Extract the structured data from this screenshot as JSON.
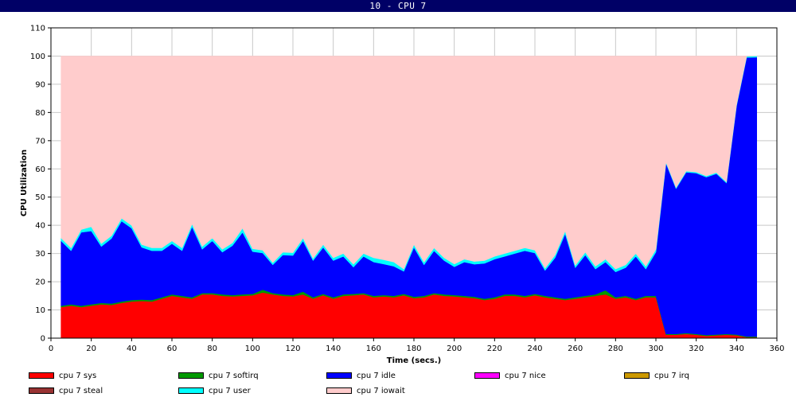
{
  "window": {
    "title": "10 - CPU 7"
  },
  "colors": {
    "iowait": "#ffcccc",
    "user": "#00ffff",
    "idle": "#0000ff",
    "softirq": "#009900",
    "sys": "#ff0000",
    "nice": "#ff00ff",
    "irq": "#cc9900",
    "steal": "#993333"
  },
  "chart_data": {
    "type": "area",
    "title": "",
    "xlabel": "Time (secs.)",
    "ylabel": "CPU Utilization",
    "xlim": [
      0,
      360
    ],
    "ylim": [
      0,
      110
    ],
    "xticks": [
      0,
      20,
      40,
      60,
      80,
      100,
      120,
      140,
      160,
      180,
      200,
      220,
      240,
      260,
      280,
      300,
      320,
      340,
      360
    ],
    "yticks": [
      0,
      10,
      20,
      30,
      40,
      50,
      60,
      70,
      80,
      90,
      100,
      110
    ],
    "grid": true,
    "stacked": true,
    "legend_position": "bottom",
    "x": [
      5,
      10,
      15,
      20,
      25,
      30,
      35,
      40,
      45,
      50,
      55,
      60,
      65,
      70,
      75,
      80,
      85,
      90,
      95,
      100,
      105,
      110,
      115,
      120,
      125,
      130,
      135,
      140,
      145,
      150,
      155,
      160,
      165,
      170,
      175,
      180,
      185,
      190,
      195,
      200,
      205,
      210,
      215,
      220,
      225,
      230,
      235,
      240,
      245,
      250,
      255,
      260,
      265,
      270,
      275,
      280,
      285,
      290,
      295,
      300,
      305,
      310,
      315,
      320,
      325,
      330,
      335,
      340,
      345,
      350
    ],
    "series": [
      {
        "name": "cpu 7 sys",
        "key": "sys",
        "values": [
          11,
          11.5,
          11,
          11.5,
          12,
          11.8,
          12.5,
          13,
          13.2,
          13,
          14,
          15,
          14.5,
          14,
          15.5,
          15.5,
          15,
          14.8,
          15,
          15.2,
          16.2,
          15.5,
          15,
          14.8,
          15.5,
          14,
          15.2,
          14,
          15,
          15.2,
          15.5,
          14.5,
          14.8,
          14.5,
          15.2,
          14.2,
          14.5,
          15.5,
          15,
          14.8,
          14.5,
          14.2,
          13.5,
          14,
          15,
          15,
          14.5,
          15.2,
          14.5,
          14,
          13.5,
          14,
          14.5,
          15,
          15.5,
          14,
          14.5,
          13.5,
          14.5,
          14.5,
          1.2,
          1.2,
          1.5,
          1.2,
          0.8,
          1,
          1.2,
          1,
          0.3,
          0.3
        ]
      },
      {
        "name": "cpu 7 softirq",
        "key": "softirq",
        "values": [
          0.5,
          0.5,
          0.5,
          0.5,
          0.5,
          0.5,
          0.5,
          0.5,
          0.5,
          0.5,
          0.5,
          0.5,
          0.5,
          0.5,
          0.5,
          0.5,
          0.5,
          0.5,
          0.5,
          0.5,
          1,
          0.5,
          0.5,
          0.5,
          1,
          0.5,
          0.5,
          0.5,
          0.5,
          0.5,
          0.5,
          0.5,
          0.5,
          0.5,
          0.5,
          0.5,
          0.5,
          0.5,
          0.5,
          0.5,
          0.5,
          0.5,
          0.5,
          0.5,
          0.5,
          0.5,
          0.5,
          0.5,
          0.5,
          0.5,
          0.5,
          0.5,
          0.5,
          0.5,
          1.5,
          0.5,
          0.5,
          0.5,
          0.5,
          0.5,
          0.3,
          0.3,
          0.3,
          0.3,
          0.3,
          0.3,
          0.3,
          0.3,
          0.3,
          0.3
        ]
      },
      {
        "name": "cpu 7 idle",
        "key": "idle",
        "values": [
          23,
          19,
          26,
          26,
          20,
          23,
          28.5,
          25.5,
          18.5,
          17.5,
          16.5,
          18,
          16,
          25,
          15.5,
          18.5,
          15,
          17.5,
          22,
          15,
          13,
          10,
          14,
          14,
          18,
          13,
          16.5,
          13,
          13.5,
          9.5,
          13,
          12,
          11,
          10.5,
          8,
          17.5,
          11,
          15,
          12,
          10,
          12,
          11.5,
          12.5,
          13.5,
          13.5,
          14.5,
          16,
          14.5,
          9,
          14,
          23,
          10.5,
          14.5,
          9,
          10,
          9,
          10,
          15,
          9.5,
          15.5,
          60.5,
          51.5,
          57,
          57,
          56,
          57,
          53.5,
          81,
          98.9,
          99
        ]
      },
      {
        "name": "cpu 7 nice",
        "key": "nice",
        "values": [
          0,
          0,
          0,
          0,
          0,
          0,
          0,
          0,
          0,
          0,
          0,
          0,
          0,
          0,
          0,
          0,
          0,
          0,
          0,
          0,
          0,
          0,
          0,
          0,
          0,
          0,
          0,
          0,
          0,
          0,
          0,
          0,
          0,
          0,
          0,
          0,
          0,
          0,
          0,
          0,
          0,
          0,
          0,
          0,
          0,
          0,
          0,
          0,
          0,
          0,
          0,
          0,
          0,
          0,
          0,
          0,
          0,
          0,
          0,
          0,
          0,
          0,
          0,
          0,
          0,
          0,
          0,
          0,
          0,
          0
        ]
      },
      {
        "name": "cpu 7 irq",
        "key": "irq",
        "values": [
          0,
          0,
          0,
          0,
          0,
          0,
          0,
          0,
          0,
          0,
          0,
          0,
          0,
          0,
          0,
          0,
          0,
          0,
          0,
          0,
          0,
          0,
          0,
          0,
          0,
          0,
          0,
          0,
          0,
          0,
          0,
          0,
          0,
          0,
          0,
          0,
          0,
          0,
          0,
          0,
          0,
          0,
          0,
          0,
          0,
          0,
          0,
          0,
          0,
          0,
          0,
          0,
          0,
          0,
          0,
          0,
          0,
          0,
          0,
          0,
          0,
          0,
          0,
          0,
          0,
          0,
          0,
          0,
          0,
          0
        ]
      },
      {
        "name": "cpu 7 steal",
        "key": "steal",
        "values": [
          0,
          0,
          0,
          0,
          0,
          0,
          0,
          0,
          0,
          0,
          0,
          0,
          0,
          0,
          0,
          0,
          0,
          0,
          0,
          0,
          0,
          0,
          0,
          0,
          0,
          0,
          0,
          0,
          0,
          0,
          0,
          0,
          0,
          0,
          0,
          0,
          0,
          0,
          0,
          0,
          0,
          0,
          0,
          0,
          0,
          0,
          0,
          0,
          0,
          0,
          0,
          0,
          0,
          0,
          0,
          0,
          0,
          0,
          0,
          0,
          0,
          0,
          0,
          0,
          0,
          0,
          0,
          0,
          0,
          0
        ]
      },
      {
        "name": "cpu 7 user",
        "key": "user",
        "values": [
          1,
          1,
          1,
          1.5,
          1,
          1,
          1,
          1,
          1,
          1,
          1,
          1,
          1,
          1,
          1,
          1,
          1,
          1,
          1.5,
          1,
          1,
          0.8,
          1,
          1,
          1,
          0.8,
          1,
          1,
          1,
          1,
          1,
          1.5,
          1.5,
          1.5,
          0.8,
          1,
          1,
          1,
          1,
          1,
          1,
          1,
          1,
          1,
          1,
          1,
          1,
          1,
          0.8,
          1,
          1,
          0.8,
          1,
          1,
          1,
          1,
          1,
          1,
          1,
          1,
          0.4,
          0.4,
          0.4,
          0.4,
          0.4,
          0.4,
          0.4,
          0.4,
          0.4,
          0.4
        ]
      },
      {
        "name": "cpu 7 iowait",
        "key": "iowait",
        "values": [
          64.5,
          68,
          61.5,
          60.5,
          66.5,
          63.7,
          57.5,
          60,
          66.8,
          68,
          68,
          65.5,
          68,
          59.5,
          67.5,
          64.5,
          68.5,
          66.2,
          61,
          68.3,
          68.8,
          73.2,
          69.5,
          69.7,
          64.5,
          71.7,
          66.8,
          71.5,
          70,
          73.8,
          70,
          71.5,
          72.2,
          73,
          75.5,
          66.8,
          73,
          68,
          71.5,
          73.7,
          72,
          72.8,
          72.5,
          71,
          70,
          69,
          68,
          68.8,
          75.2,
          70.5,
          62,
          74.2,
          69.5,
          74.5,
          72,
          75.5,
          74,
          70,
          74.5,
          68.5,
          37.6,
          46.6,
          40.8,
          41.1,
          42.5,
          41.3,
          44.6,
          17.3,
          0.1,
          0
        ]
      }
    ],
    "legend": [
      "cpu 7 sys",
      "cpu 7 softirq",
      "cpu 7 idle",
      "cpu 7 nice",
      "cpu 7 irq",
      "cpu 7 steal",
      "cpu 7 user",
      "cpu 7 iowait"
    ]
  }
}
